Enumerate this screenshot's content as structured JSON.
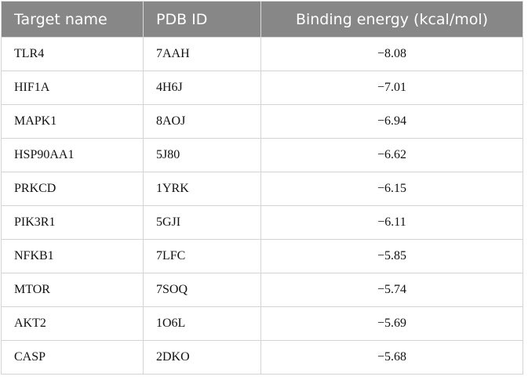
{
  "table": {
    "header": [
      "Target name",
      "PDB ID",
      "Binding energy (kcal/mol)"
    ],
    "rows": [
      [
        "TLR4",
        "7AAH",
        "−8.08"
      ],
      [
        "HIF1A",
        "4H6J",
        "−7.01"
      ],
      [
        "MAPK1",
        "8AOJ",
        "−6.94"
      ],
      [
        "HSP90AA1",
        "5J80",
        "−6.62"
      ],
      [
        "PRKCD",
        "1YRK",
        "−6.15"
      ],
      [
        "PIK3R1",
        "5GJI",
        "−6.11"
      ],
      [
        "NFKB1",
        "7LFC",
        "−5.85"
      ],
      [
        "MTOR",
        "7SOQ",
        "−5.74"
      ],
      [
        "AKT2",
        "1O6L",
        "−5.69"
      ],
      [
        "CASP",
        "2DKO",
        "−5.68"
      ]
    ]
  }
}
